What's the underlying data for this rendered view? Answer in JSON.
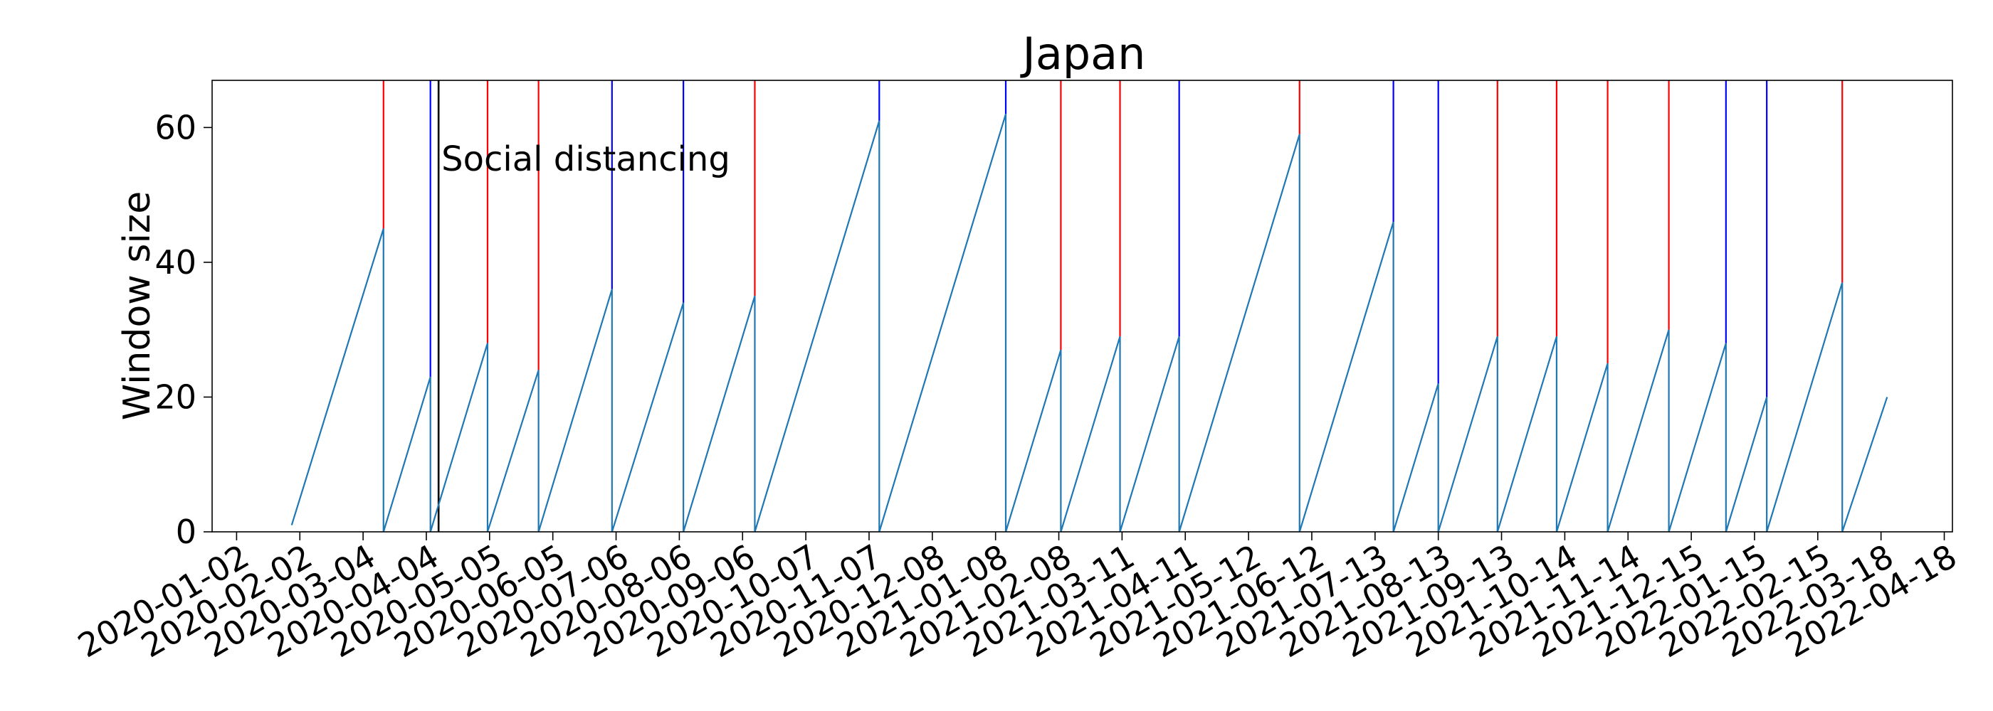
{
  "chart_data": {
    "type": "line",
    "title": "Japan",
    "xlabel": "",
    "ylabel": "Window size",
    "x_type": "date",
    "xlim": [
      "2019-12-21",
      "2022-04-22"
    ],
    "ylim": [
      0,
      67
    ],
    "x_ticks": [
      "2020-01-02",
      "2020-02-02",
      "2020-03-04",
      "2020-04-04",
      "2020-05-05",
      "2020-06-05",
      "2020-07-06",
      "2020-08-06",
      "2020-09-06",
      "2020-10-07",
      "2020-11-07",
      "2020-12-08",
      "2021-01-08",
      "2021-02-08",
      "2021-03-11",
      "2021-04-11",
      "2021-05-12",
      "2021-06-12",
      "2021-07-13",
      "2021-08-13",
      "2021-09-13",
      "2021-10-14",
      "2021-11-14",
      "2021-12-15",
      "2022-01-15",
      "2022-02-15",
      "2022-03-18",
      "2022-04-18"
    ],
    "y_ticks": [
      0,
      20,
      40,
      60
    ],
    "grid": false,
    "series": [
      {
        "color": "#1f77b4",
        "points": [
          [
            "2020-01-29",
            1
          ],
          [
            "2020-03-14",
            45
          ],
          [
            "2020-03-14",
            0
          ],
          [
            "2020-04-06",
            23
          ],
          [
            "2020-04-06",
            0
          ],
          [
            "2020-05-04",
            28
          ],
          [
            "2020-05-04",
            0
          ],
          [
            "2020-05-29",
            24
          ],
          [
            "2020-05-29",
            0
          ],
          [
            "2020-07-04",
            36
          ],
          [
            "2020-07-04",
            0
          ],
          [
            "2020-08-08",
            34
          ],
          [
            "2020-08-08",
            0
          ],
          [
            "2020-09-12",
            35
          ],
          [
            "2020-09-12",
            0
          ],
          [
            "2020-11-12",
            61
          ],
          [
            "2020-11-12",
            0
          ],
          [
            "2021-01-13",
            62
          ],
          [
            "2021-01-13",
            0
          ],
          [
            "2021-02-09",
            27
          ],
          [
            "2021-02-09",
            0
          ],
          [
            "2021-03-10",
            29
          ],
          [
            "2021-03-10",
            0
          ],
          [
            "2021-04-08",
            29
          ],
          [
            "2021-04-08",
            0
          ],
          [
            "2021-06-06",
            59
          ],
          [
            "2021-06-06",
            0
          ],
          [
            "2021-07-22",
            46
          ],
          [
            "2021-07-22",
            0
          ],
          [
            "2021-08-13",
            22
          ],
          [
            "2021-08-13",
            0
          ],
          [
            "2021-09-11",
            29
          ],
          [
            "2021-09-11",
            0
          ],
          [
            "2021-10-10",
            29
          ],
          [
            "2021-10-10",
            0
          ],
          [
            "2021-11-04",
            25
          ],
          [
            "2021-11-04",
            0
          ],
          [
            "2021-12-04",
            30
          ],
          [
            "2021-12-04",
            0
          ],
          [
            "2022-01-01",
            28
          ],
          [
            "2022-01-01",
            0
          ],
          [
            "2022-01-21",
            20
          ],
          [
            "2022-01-21",
            0
          ],
          [
            "2022-02-27",
            37
          ],
          [
            "2022-02-27",
            0
          ],
          [
            "2022-03-21",
            20
          ]
        ]
      }
    ],
    "vlines": [
      {
        "date": "2020-03-14",
        "from": 45,
        "color": "#ff0000"
      },
      {
        "date": "2020-04-06",
        "from": 23,
        "color": "#0000ff"
      },
      {
        "date": "2020-05-04",
        "from": 28,
        "color": "#ff0000"
      },
      {
        "date": "2020-05-29",
        "from": 24,
        "color": "#ff0000"
      },
      {
        "date": "2020-07-04",
        "from": 36,
        "color": "#0000ff"
      },
      {
        "date": "2020-08-08",
        "from": 34,
        "color": "#0000ff"
      },
      {
        "date": "2020-09-12",
        "from": 35,
        "color": "#ff0000"
      },
      {
        "date": "2020-11-12",
        "from": 61,
        "color": "#0000ff"
      },
      {
        "date": "2021-01-13",
        "from": 62,
        "color": "#0000ff"
      },
      {
        "date": "2021-02-09",
        "from": 27,
        "color": "#ff0000"
      },
      {
        "date": "2021-03-10",
        "from": 29,
        "color": "#ff0000"
      },
      {
        "date": "2021-04-08",
        "from": 29,
        "color": "#0000ff"
      },
      {
        "date": "2021-06-06",
        "from": 59,
        "color": "#ff0000"
      },
      {
        "date": "2021-07-22",
        "from": 46,
        "color": "#0000ff"
      },
      {
        "date": "2021-08-13",
        "from": 22,
        "color": "#0000ff"
      },
      {
        "date": "2021-09-11",
        "from": 29,
        "color": "#ff0000"
      },
      {
        "date": "2021-10-10",
        "from": 29,
        "color": "#ff0000"
      },
      {
        "date": "2021-11-04",
        "from": 25,
        "color": "#ff0000"
      },
      {
        "date": "2021-12-04",
        "from": 30,
        "color": "#ff0000"
      },
      {
        "date": "2022-01-01",
        "from": 28,
        "color": "#0000ff"
      },
      {
        "date": "2022-01-21",
        "from": 20,
        "color": "#0000ff"
      },
      {
        "date": "2022-02-27",
        "from": 37,
        "color": "#ff0000"
      }
    ],
    "annotations": [
      {
        "text": "Social distancing",
        "date": "2020-04-10",
        "color": "#000000"
      }
    ]
  }
}
